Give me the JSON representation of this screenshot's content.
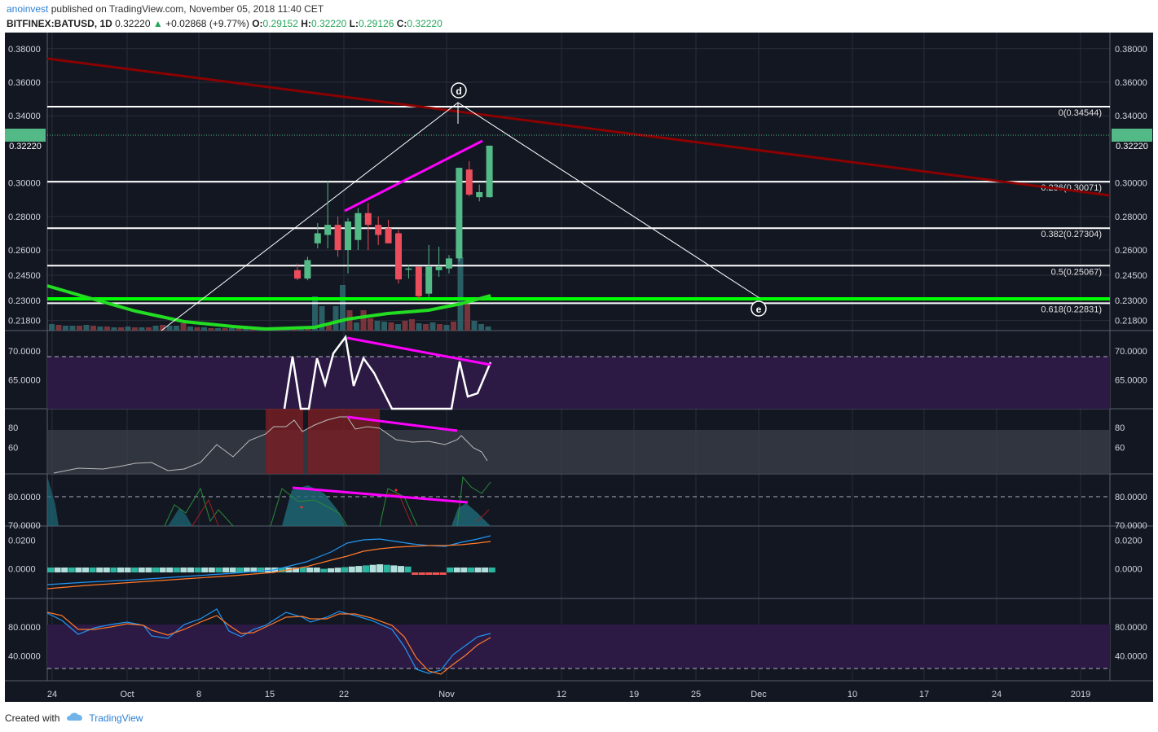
{
  "header": {
    "author": "anoinvest",
    "published": "published on TradingView.com, November 05, 2018 11:40 CET",
    "symbol": "BITFINEX:BATUSD, 1D",
    "last": "0.32220",
    "change_arrow": "▲",
    "change": "+0.02868 (+9.77%)",
    "o_label": "O:",
    "o": "0.29152",
    "h_label": "H:",
    "h": "0.32220",
    "l_label": "L:",
    "l": "0.29126",
    "c_label": "C:",
    "c": "0.32220"
  },
  "footer": {
    "created_with": "Created with",
    "brand": "TradingView",
    "logo_icon": "tradingview-cloud-icon"
  },
  "colors": {
    "bg": "#131722",
    "up": "#53b987",
    "down": "#eb4d5c",
    "fib": "#ffffff",
    "trend": "#8b0000",
    "green_line": "#00ff00",
    "magenta": "#ff00ff"
  },
  "chart_data": {
    "type": "candlestick",
    "x_ticks": [
      "24",
      "Oct",
      "8",
      "15",
      "22",
      "Nov",
      "12",
      "19",
      "25",
      "Dec",
      "10",
      "17",
      "24",
      "2019"
    ],
    "price_ticks": [
      "0.38000",
      "0.36000",
      "0.34000",
      "0.30000",
      "0.28000",
      "0.26000",
      "0.24500",
      "0.23000",
      "0.21800"
    ],
    "price_ticks_v": [
      0.38,
      0.36,
      0.34,
      0.3,
      0.28,
      0.26,
      0.245,
      0.23,
      0.218
    ],
    "price_range": [
      0.212,
      0.3896
    ],
    "last_price_label": "0.32220",
    "last_price": 0.3222,
    "candles": [
      {
        "o": 0.248,
        "h": 0.252,
        "l": 0.242,
        "c": 0.243
      },
      {
        "o": 0.243,
        "h": 0.256,
        "l": 0.242,
        "c": 0.254
      },
      {
        "o": 0.264,
        "h": 0.276,
        "l": 0.261,
        "c": 0.27
      },
      {
        "o": 0.269,
        "h": 0.301,
        "l": 0.261,
        "c": 0.275
      },
      {
        "o": 0.275,
        "h": 0.28,
        "l": 0.256,
        "c": 0.26
      },
      {
        "o": 0.26,
        "h": 0.279,
        "l": 0.246,
        "c": 0.277
      },
      {
        "o": 0.266,
        "h": 0.285,
        "l": 0.26,
        "c": 0.282
      },
      {
        "o": 0.282,
        "h": 0.288,
        "l": 0.26,
        "c": 0.275
      },
      {
        "o": 0.275,
        "h": 0.28,
        "l": 0.263,
        "c": 0.269
      },
      {
        "o": 0.273,
        "h": 0.278,
        "l": 0.264,
        "c": 0.264
      },
      {
        "o": 0.27,
        "h": 0.272,
        "l": 0.24,
        "c": 0.2425
      },
      {
        "o": 0.2485,
        "h": 0.251,
        "l": 0.243,
        "c": 0.249
      },
      {
        "o": 0.25,
        "h": 0.25,
        "l": 0.231,
        "c": 0.2325
      },
      {
        "o": 0.234,
        "h": 0.263,
        "l": 0.232,
        "c": 0.25
      },
      {
        "o": 0.248,
        "h": 0.262,
        "l": 0.244,
        "c": 0.25
      },
      {
        "o": 0.249,
        "h": 0.257,
        "l": 0.246,
        "c": 0.255
      },
      {
        "o": 0.255,
        "h": 0.309,
        "l": 0.253,
        "c": 0.309
      },
      {
        "o": 0.308,
        "h": 0.313,
        "l": 0.292,
        "c": 0.293
      },
      {
        "o": 0.2915,
        "h": 0.299,
        "l": 0.289,
        "c": 0.2945
      },
      {
        "o": 0.2915,
        "h": 0.3222,
        "l": 0.2913,
        "c": 0.3222
      }
    ],
    "fib_levels": [
      {
        "label": "0(0.34544)",
        "v": 0.34544
      },
      {
        "label": "0.236(0.30071)",
        "v": 0.30071
      },
      {
        "label": "0.382(0.27304)",
        "v": 0.27304
      },
      {
        "label": "0.5(0.25067)",
        "v": 0.25067
      },
      {
        "label": "0.618(0.22831)",
        "v": 0.22831
      }
    ],
    "pattern_points": [
      {
        "label": "d",
        "at": "peak"
      },
      {
        "label": "e",
        "at": "target"
      }
    ],
    "rsi": {
      "ticks": [
        "70.0000",
        "65.0000"
      ],
      "ticks_v": [
        70,
        65
      ],
      "range": [
        60,
        73.5
      ],
      "ob_level": 70
    },
    "stoch_rsi_panel": {
      "ticks": [
        "80",
        "60"
      ],
      "ticks_v": [
        80,
        60
      ],
      "range": [
        33,
        99
      ]
    },
    "mfi_panel": {
      "ticks": [
        "80.0000",
        "80.0000",
        "70.0000",
        "70.0000"
      ],
      "ticks_v": [
        80,
        70
      ],
      "range": [
        68.5,
        84.5
      ]
    },
    "macd": {
      "ticks": [
        "0.0200",
        "0.0000"
      ],
      "ticks_v": [
        0.02,
        0.0
      ],
      "range": [
        -0.021,
        0.03
      ]
    },
    "stoch": {
      "ticks": [
        "80.0000",
        "40.0000"
      ],
      "ticks_v": [
        80,
        40
      ],
      "range": [
        5,
        120
      ],
      "band": [
        80,
        20
      ]
    }
  }
}
